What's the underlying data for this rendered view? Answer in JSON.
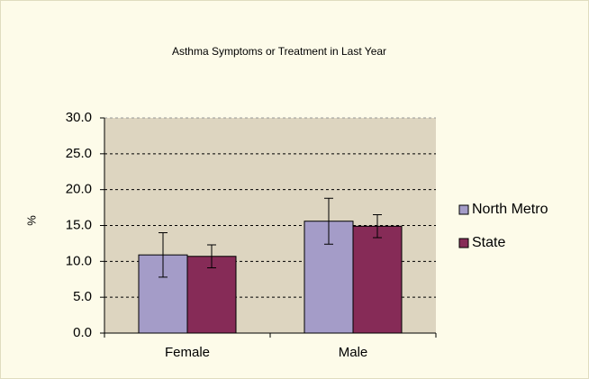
{
  "chart_data": {
    "type": "bar",
    "title": "Asthma Symptoms or Treatment in Last Year",
    "ylabel": "%",
    "categories": [
      "Female",
      "Male"
    ],
    "series": [
      {
        "name": "North Metro",
        "color": "#a49cc8",
        "values": [
          10.9,
          15.6
        ],
        "errors": [
          3.1,
          3.2
        ]
      },
      {
        "name": "State",
        "color": "#862b57",
        "values": [
          10.7,
          14.9
        ],
        "errors": [
          1.6,
          1.6
        ]
      }
    ],
    "ylim": [
      0,
      30
    ],
    "yticks": [
      {
        "value": 0,
        "label": "0.0"
      },
      {
        "value": 5,
        "label": "5.0"
      },
      {
        "value": 10,
        "label": "10.0"
      },
      {
        "value": 15,
        "label": "15.0"
      },
      {
        "value": 20,
        "label": "20.0"
      },
      {
        "value": 25,
        "label": "25.0"
      },
      {
        "value": 30,
        "label": "30.0"
      }
    ],
    "grid": true,
    "legend": "right"
  }
}
